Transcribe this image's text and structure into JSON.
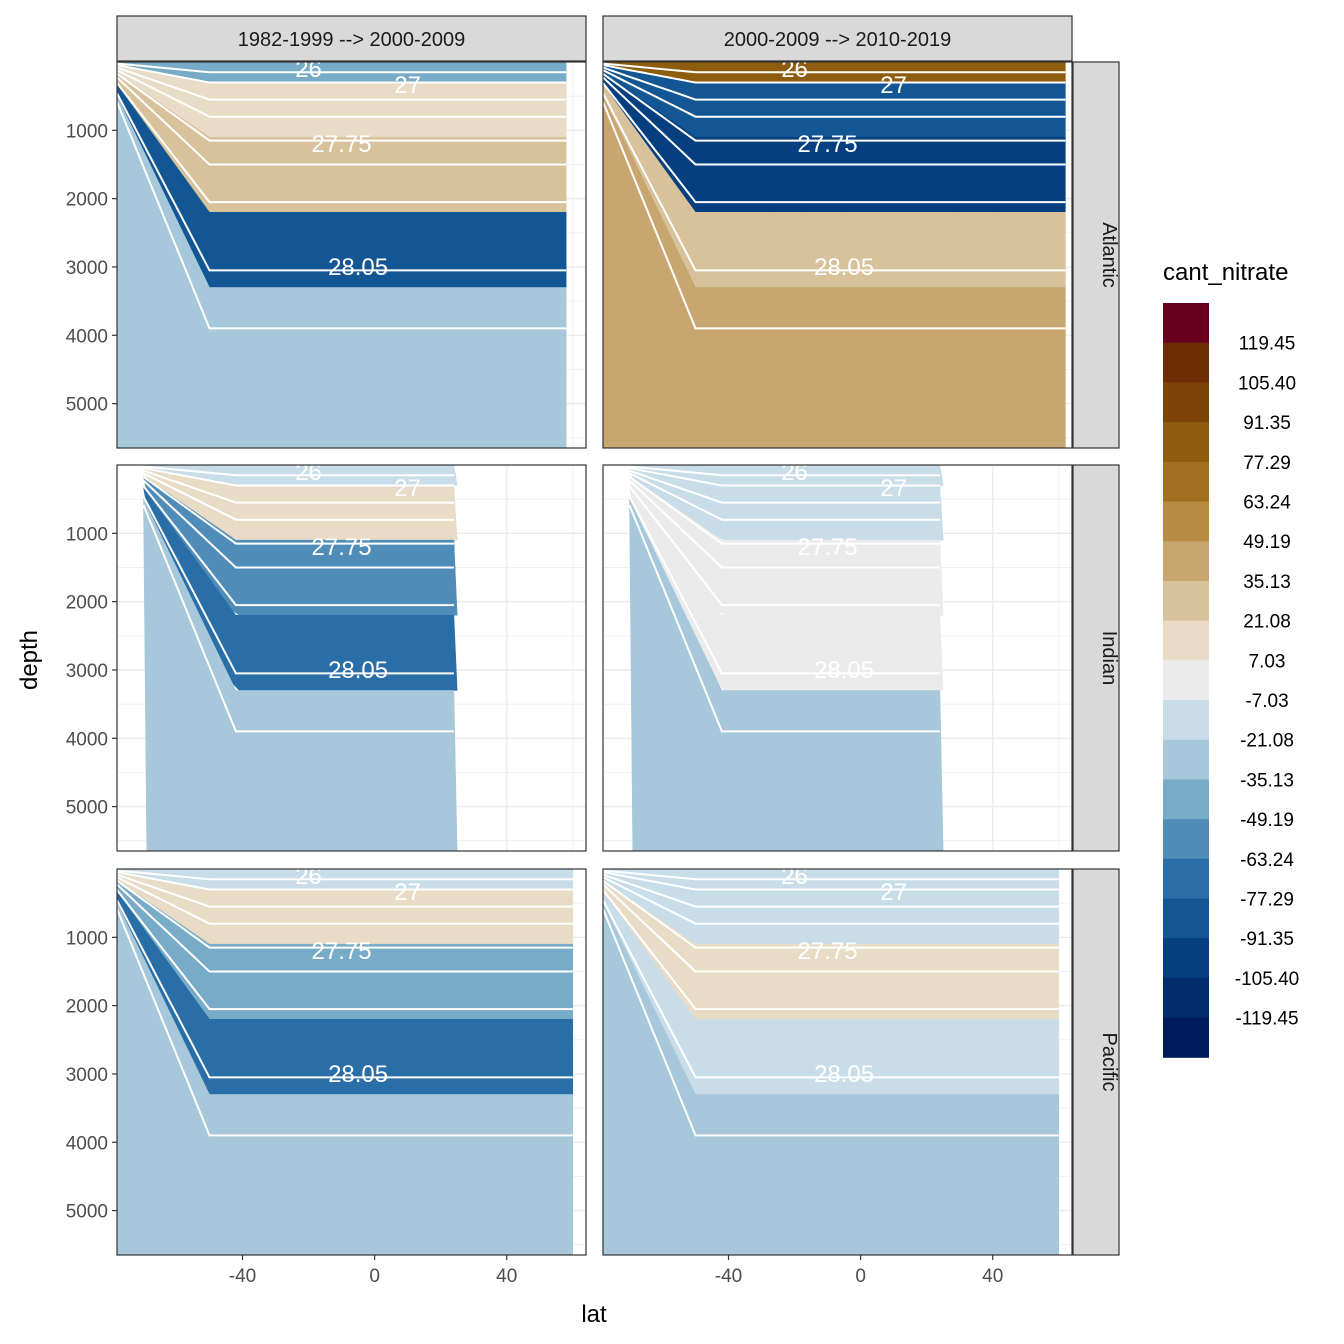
{
  "chart_data": {
    "type": "heatmap",
    "subtype": "faceted filled-contour depth section",
    "xlabel": "lat",
    "ylabel": "depth",
    "x_ticks": [
      -40,
      0,
      40
    ],
    "y_ticks": [
      1000,
      2000,
      3000,
      4000,
      5000
    ],
    "xlim": [
      -78,
      64
    ],
    "ylim_reversed": [
      5650,
      0
    ],
    "grid": true,
    "column_facets": [
      "1982-1999 --> 2000-2009",
      "2000-2009 --> 2010-2019"
    ],
    "row_facets": [
      "Atlantic",
      "Indian",
      "Pacific"
    ],
    "legend": {
      "title": "cant_nitrate",
      "position": "right",
      "labels": [
        "119.45",
        "105.40",
        "91.35",
        "77.29",
        "63.24",
        "49.19",
        "35.13",
        "21.08",
        "7.03",
        "-7.03",
        "-21.08",
        "-35.13",
        "-49.19",
        "-63.24",
        "-77.29",
        "-91.35",
        "-105.40",
        "-119.45"
      ],
      "colors": [
        "#67001f",
        "#6e2e05",
        "#7e4306",
        "#8e5c0d",
        "#a06f1f",
        "#b88b45",
        "#c8a670",
        "#d8c29b",
        "#e8dcc6",
        "#ebebeb",
        "#c9dde9",
        "#a6c8da",
        "#78abc8",
        "#4f8db8",
        "#2a6ea7",
        "#125694",
        "#053f80",
        "#022d6c",
        "#011c5a"
      ]
    },
    "isopycnal_labels": [
      "26",
      "27",
      "27.75",
      "28.05"
    ],
    "panels": [
      {
        "column": "1982-1999 --> 2000-2009",
        "row": "Atlantic",
        "depth_max": 5650,
        "lat_range": [
          -78,
          58
        ],
        "layers": {
          "surface": "-35.13",
          "thermocline": "21.08",
          "intermediate": "35.13",
          "deep": "-77.29",
          "bottom": "-21.08"
        }
      },
      {
        "column": "2000-2009 --> 2010-2019",
        "row": "Atlantic",
        "depth_max": 5650,
        "lat_range": [
          -78,
          62
        ],
        "layers": {
          "surface": "91.35",
          "thermocline": "-77.29",
          "intermediate": "-91.35",
          "deep": "35.13",
          "bottom": "49.19"
        }
      },
      {
        "column": "1982-1999 --> 2000-2009",
        "row": "Indian",
        "depth_max": 5650,
        "lat_range": [
          -70,
          25
        ],
        "layers": {
          "surface": "-7.03",
          "thermocline": "21.08",
          "intermediate": "-49.19",
          "deep": "-63.24",
          "bottom": "-21.08"
        }
      },
      {
        "column": "2000-2009 --> 2010-2019",
        "row": "Indian",
        "depth_max": 5650,
        "lat_range": [
          -70,
          25
        ],
        "layers": {
          "surface": "-7.03",
          "thermocline": "-7.03",
          "intermediate": "7.03",
          "deep": "7.03",
          "bottom": "-21.08"
        }
      },
      {
        "column": "1982-1999 --> 2000-2009",
        "row": "Pacific",
        "depth_max": 5650,
        "lat_range": [
          -78,
          60
        ],
        "layers": {
          "surface": "-7.03",
          "thermocline": "21.08",
          "intermediate": "-35.13",
          "deep": "-63.24",
          "bottom": "-21.08"
        }
      },
      {
        "column": "2000-2009 --> 2010-2019",
        "row": "Pacific",
        "depth_max": 5650,
        "lat_range": [
          -78,
          60
        ],
        "layers": {
          "surface": "-7.03",
          "thermocline": "-7.03",
          "intermediate": "21.08",
          "deep": "-7.03",
          "bottom": "-21.08"
        }
      }
    ]
  }
}
